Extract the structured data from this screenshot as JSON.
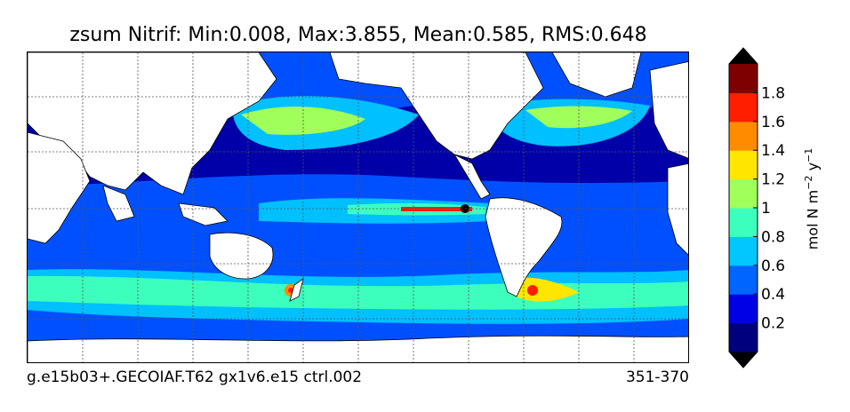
{
  "title": "zsum Nitrif: Min:0.008, Max:3.855, Mean:0.585, RMS:0.648",
  "footer": {
    "left": "g.e15b03+.GECOIAF.T62 gx1v6.e15 ctrl.002",
    "right": "351-370"
  },
  "colorbar": {
    "label_main": "mol N m",
    "label_exp1": "−2",
    "label_mid": " y",
    "label_exp2": "−1",
    "ticks": [
      "0.2",
      "0.4",
      "0.6",
      "0.8",
      "1",
      "1.2",
      "1.4",
      "1.6",
      "1.8"
    ],
    "colors": [
      "#00007f",
      "#0000e6",
      "#0064ff",
      "#00c8ff",
      "#3cffbe",
      "#a0ff5a",
      "#ffe600",
      "#ff8c00",
      "#ff1e00",
      "#7f0000"
    ],
    "under_color": "#000000",
    "over_color": "#000000"
  },
  "map_colors": {
    "land": "#ffffff",
    "ocean_low": "#0000a8",
    "ocean_mid": "#0050ff",
    "ocean_high": "#00c0ff",
    "cyan_green": "#3cffbe",
    "green": "#a0ff5a",
    "yellow": "#ffe600",
    "orange": "#ff8c00",
    "red": "#ff1e00",
    "dark_red": "#7f0000"
  }
}
